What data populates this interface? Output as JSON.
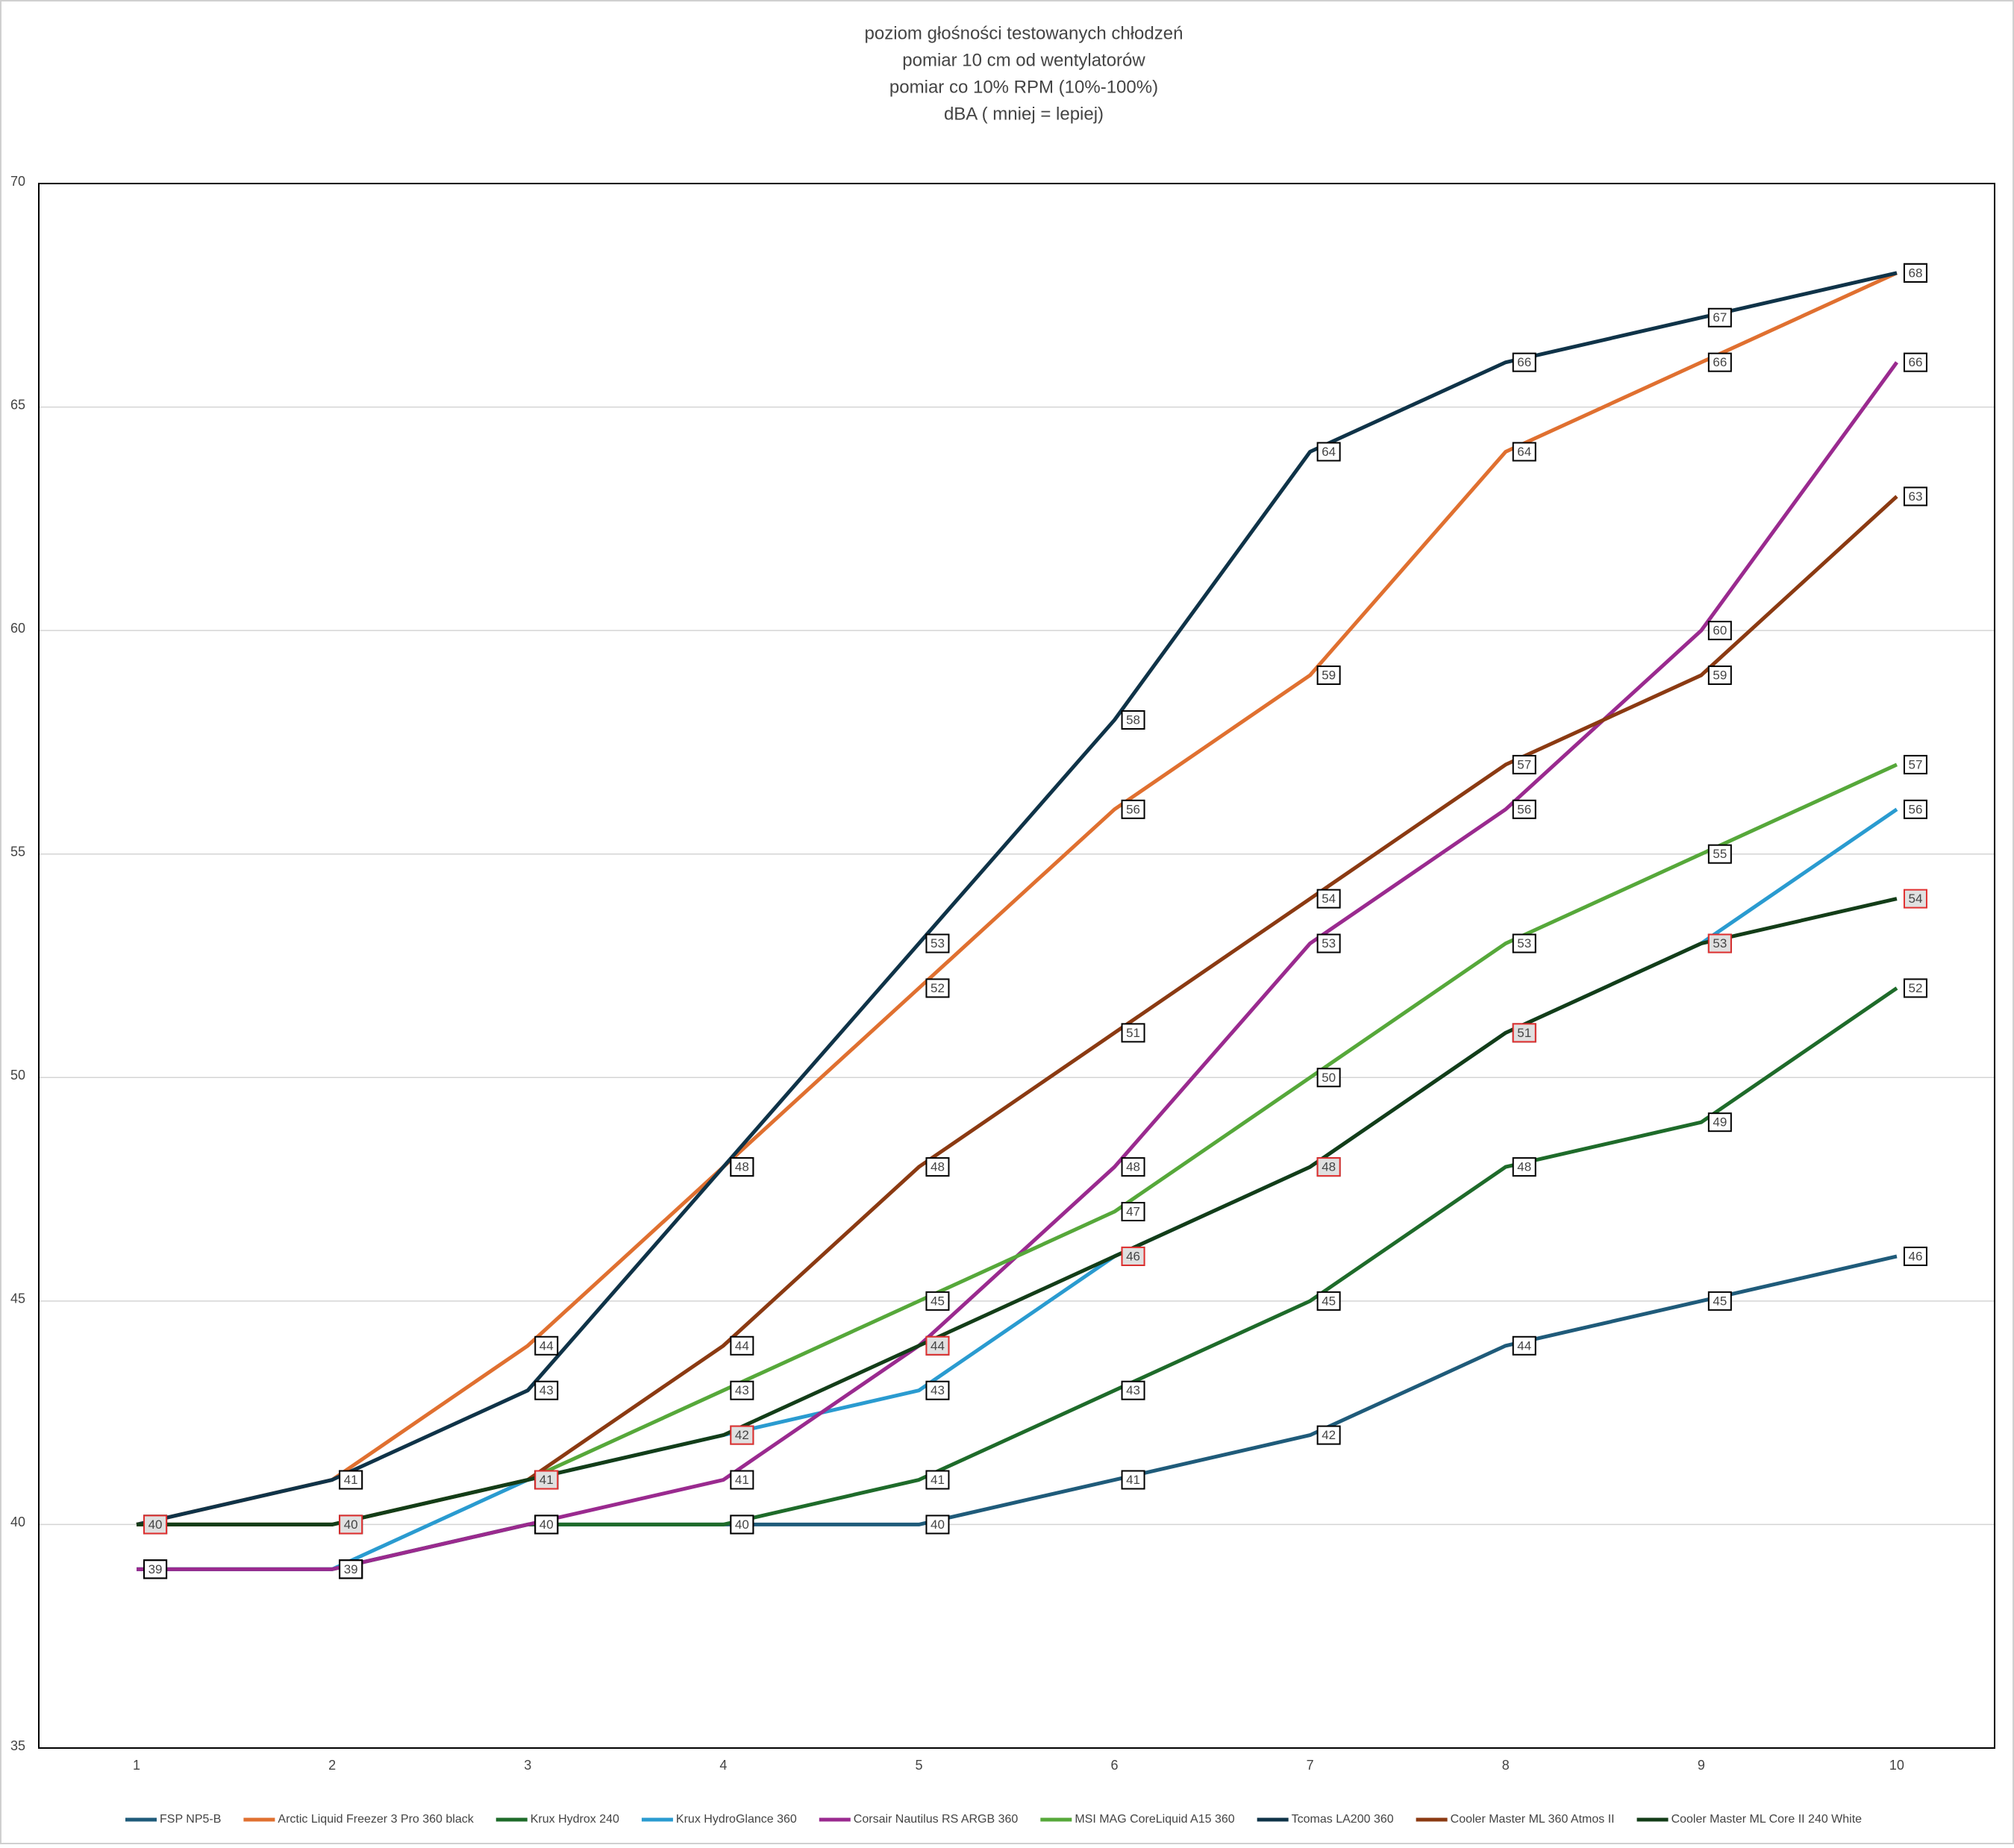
{
  "chart_data": {
    "type": "line",
    "title": [
      "poziom głośności testowanych chłodzeń",
      "pomiar 10 cm od wentylatorów",
      "pomiar co 10% RPM (10%-100%)",
      "dBA ( mniej = lepiej)"
    ],
    "categories": [
      "1",
      "2",
      "3",
      "4",
      "5",
      "6",
      "7",
      "8",
      "9",
      "10"
    ],
    "ylim": [
      35,
      70
    ],
    "yticks": [
      35,
      40,
      45,
      50,
      55,
      60,
      65,
      70
    ],
    "grid": true,
    "legend": "bottom",
    "series": [
      {
        "name": "FSP NP5-B",
        "color": "#1f5b7a",
        "values": [
          39,
          39,
          40,
          40,
          40,
          41,
          42,
          44,
          45,
          46
        ]
      },
      {
        "name": "Arctic Liquid Freezer 3 Pro 360 black",
        "color": "#e07030",
        "values": [
          40,
          41,
          44,
          48,
          52,
          56,
          59,
          64,
          66,
          68
        ]
      },
      {
        "name": "Krux Hydrox 240",
        "color": "#1e6b2a",
        "values": [
          39,
          39,
          40,
          40,
          41,
          43,
          45,
          48,
          49,
          52
        ]
      },
      {
        "name": "Krux HydroGlance 360",
        "color": "#2a9bd0",
        "values": [
          39,
          39,
          41,
          42,
          43,
          46,
          48,
          51,
          53,
          56
        ]
      },
      {
        "name": "Corsair  Nautilus RS ARGB 360",
        "color": "#9a2a8f",
        "values": [
          39,
          39,
          40,
          41,
          44,
          48,
          53,
          56,
          60,
          66
        ]
      },
      {
        "name": "MSI MAG CoreLiquid A15 360",
        "color": "#56a83a",
        "values": [
          40,
          40,
          41,
          43,
          45,
          47,
          50,
          53,
          55,
          57
        ]
      },
      {
        "name": "Tcomas LA200 360",
        "color": "#0f3348",
        "values": [
          40,
          41,
          43,
          48,
          53,
          58,
          64,
          66,
          67,
          68
        ]
      },
      {
        "name": "Cooler Master ML 360 Atmos II",
        "color": "#8b3a12",
        "values": [
          40,
          40,
          41,
          44,
          48,
          51,
          54,
          57,
          59,
          63
        ]
      },
      {
        "name": "Cooler Master ML Core II 240 White",
        "color": "#133d18",
        "label_border": "#e03030",
        "values": [
          40,
          40,
          41,
          42,
          44,
          46,
          48,
          51,
          53,
          54
        ]
      }
    ]
  }
}
